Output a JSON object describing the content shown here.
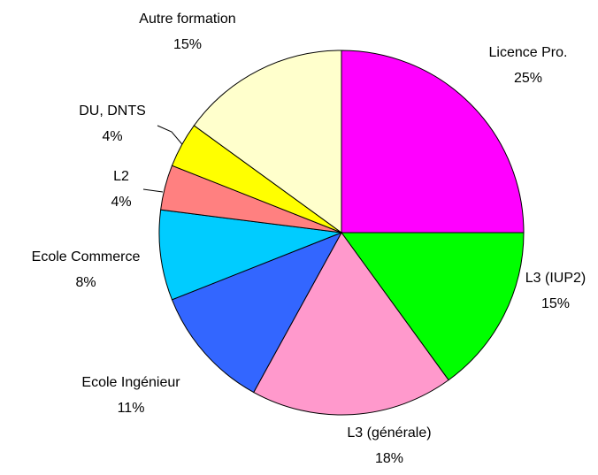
{
  "chart_data": {
    "type": "pie",
    "categories": [
      "Licence Pro.",
      "L3 (IUP2)",
      "L3 (générale)",
      "Ecole Ingénieur",
      "Ecole Commerce",
      "L2",
      "DU, DNTS",
      "Autre formation"
    ],
    "values": [
      25,
      15,
      18,
      11,
      8,
      4,
      4,
      15
    ],
    "value_labels": [
      "25%",
      "15%",
      "18%",
      "11%",
      "8%",
      "4%",
      "4%",
      "15%"
    ],
    "colors": [
      "#ff00ff",
      "#00ff00",
      "#ff99cc",
      "#3366ff",
      "#00ccff",
      "#ff8080",
      "#ffff00",
      "#ffffcc"
    ]
  }
}
